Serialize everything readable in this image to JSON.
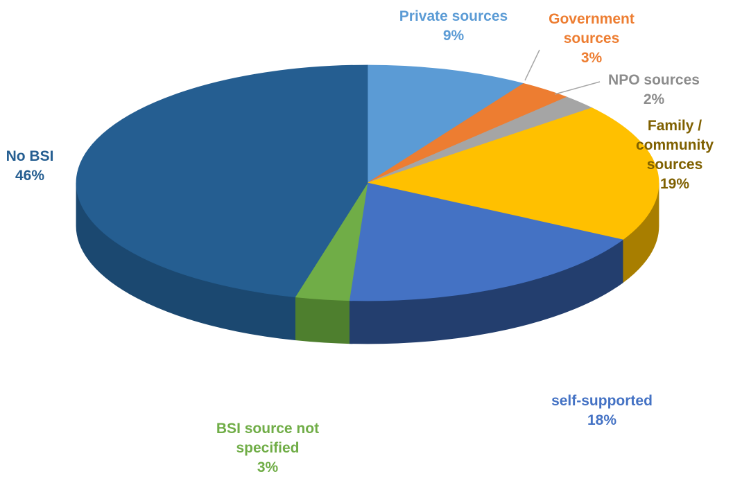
{
  "chart_data": {
    "type": "pie",
    "title": "",
    "legend": "none",
    "slices": [
      {
        "label_lines": [
          "Private sources"
        ],
        "value": 9,
        "value_text": "9%",
        "color": "#5B9BD5",
        "side_color": "#3E78AD",
        "label_color": "#5B9BD5"
      },
      {
        "label_lines": [
          "Government",
          "sources"
        ],
        "value": 3,
        "value_text": "3%",
        "color": "#ED7D31",
        "side_color": "#B85A1E",
        "label_color": "#ED7D31"
      },
      {
        "label_lines": [
          "NPO sources"
        ],
        "value": 2,
        "value_text": "2%",
        "color": "#A5A5A5",
        "side_color": "#7A7A7A",
        "label_color": "#8C8C8C"
      },
      {
        "label_lines": [
          "Family /",
          "community",
          "sources"
        ],
        "value": 19,
        "value_text": "19%",
        "color": "#FFC000",
        "side_color": "#A87E00",
        "label_color": "#7F6000"
      },
      {
        "label_lines": [
          "self-supported"
        ],
        "value": 18,
        "value_text": "18%",
        "color": "#4472C4",
        "side_color": "#233E6E",
        "label_color": "#4472C4"
      },
      {
        "label_lines": [
          "BSI source not",
          "specified"
        ],
        "value": 3,
        "value_text": "3%",
        "color": "#70AD47",
        "side_color": "#4E7F2E",
        "label_color": "#70AD47"
      },
      {
        "label_lines": [
          "No BSI"
        ],
        "value": 46,
        "value_text": "46%",
        "color": "#255E91",
        "side_color": "#1B4870",
        "label_color": "#255E91"
      }
    ]
  }
}
